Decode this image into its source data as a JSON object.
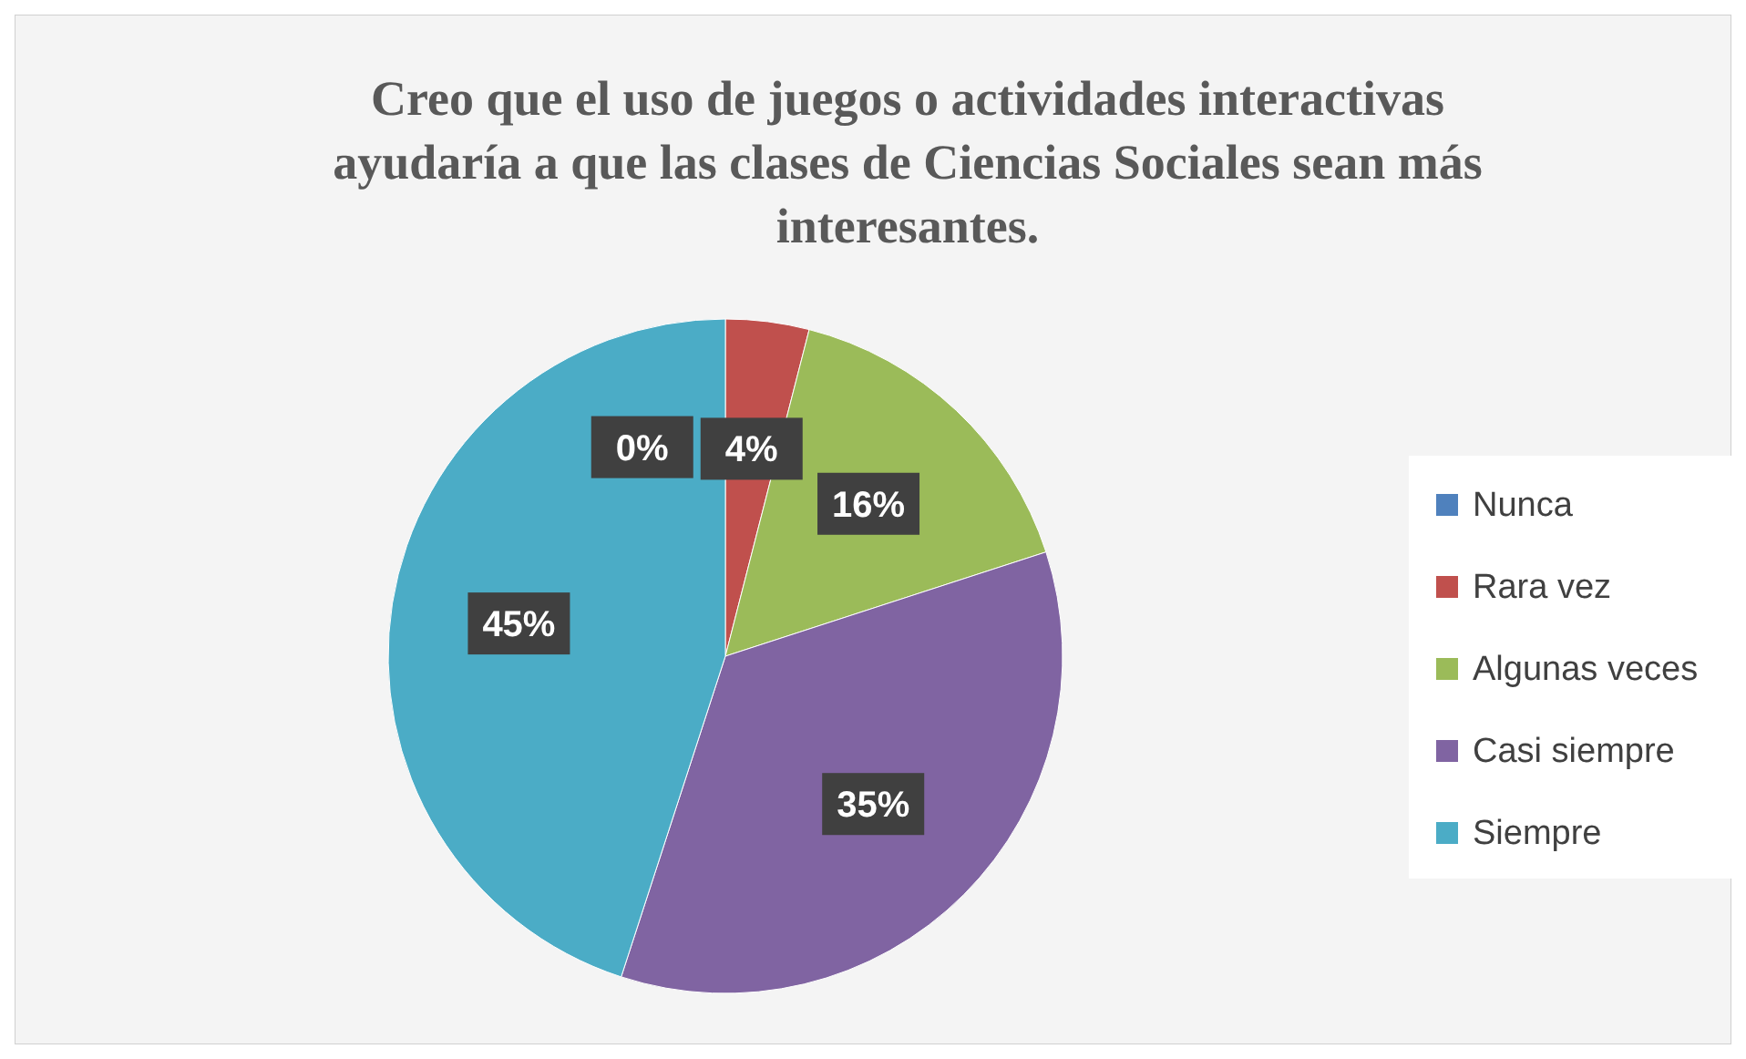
{
  "chart_data": {
    "type": "pie",
    "title": "Creo que el uso de juegos o actividades interactivas ayudaría a que las clases de Ciencias Sociales sean más interesantes.",
    "categories": [
      "Nunca",
      "Rara vez",
      "Algunas veces",
      "Casi siempre",
      "Siempre"
    ],
    "values": [
      0,
      4,
      16,
      35,
      45
    ],
    "value_labels": [
      "0%",
      "4%",
      "16%",
      "35%",
      "45%"
    ],
    "colors": [
      "#4f81bd",
      "#c0504d",
      "#9bbb59",
      "#8064a2",
      "#4bacc6"
    ],
    "legend": "right"
  }
}
